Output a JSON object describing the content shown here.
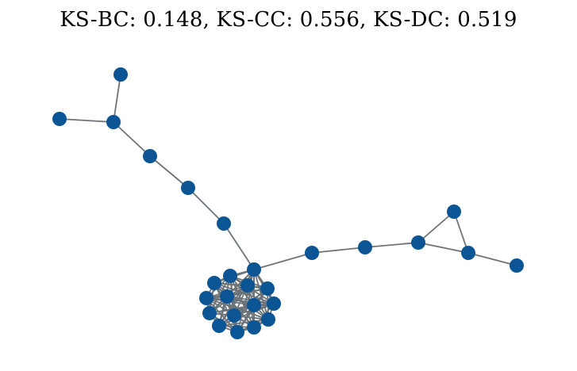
{
  "title": "KS-BC: 0.148, KS-CC: 0.556, KS-DC: 0.519",
  "colors": {
    "node": "#0b5595",
    "edge": "#6b7378",
    "background": "#ffffff"
  }
}
